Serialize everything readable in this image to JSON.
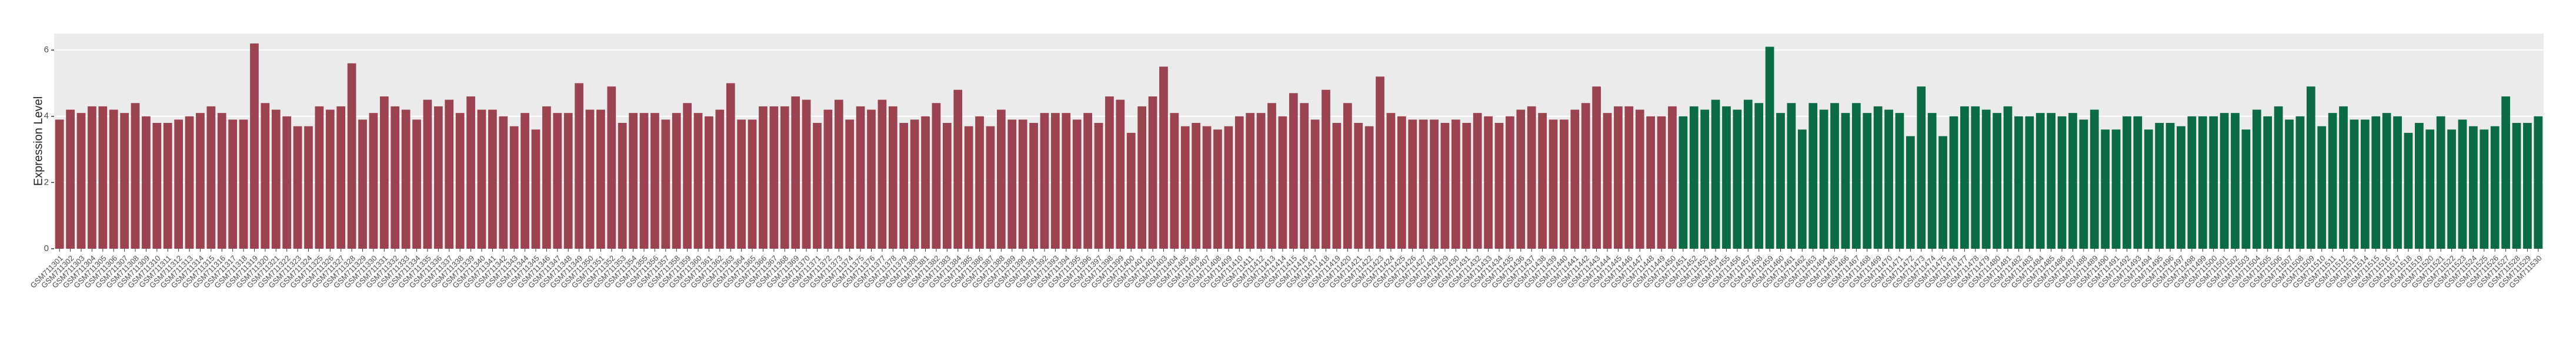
{
  "chart_data": {
    "type": "bar",
    "ylabel": "Expression Level",
    "ylim": [
      0,
      6.5
    ],
    "yticks": [
      0,
      2,
      4,
      6
    ],
    "grid": true,
    "series": [
      {
        "color": "#9b4450",
        "categories": [
          "GSM711301",
          "GSM711302",
          "GSM711303",
          "GSM711304",
          "GSM711305",
          "GSM711306",
          "GSM711307",
          "GSM711308",
          "GSM711309",
          "GSM711310",
          "GSM711311",
          "GSM711312",
          "GSM711313",
          "GSM711314",
          "GSM711315",
          "GSM711316",
          "GSM711317",
          "GSM711318",
          "GSM711319",
          "GSM711320",
          "GSM711321",
          "GSM711322",
          "GSM711323",
          "GSM711324",
          "GSM711325",
          "GSM711326",
          "GSM711327",
          "GSM711328",
          "GSM711329",
          "GSM711330",
          "GSM711331",
          "GSM711332",
          "GSM711333",
          "GSM711334",
          "GSM711335",
          "GSM711336",
          "GSM711337",
          "GSM711338",
          "GSM711339",
          "GSM711340",
          "GSM711341",
          "GSM711342",
          "GSM711343",
          "GSM711344",
          "GSM711345",
          "GSM711346",
          "GSM711347",
          "GSM711348",
          "GSM711349",
          "GSM711350",
          "GSM711351",
          "GSM711352",
          "GSM711353",
          "GSM711354",
          "GSM711355",
          "GSM711356",
          "GSM711357",
          "GSM711358",
          "GSM711359",
          "GSM711360",
          "GSM711361",
          "GSM711362",
          "GSM711363",
          "GSM711364",
          "GSM711365",
          "GSM711366",
          "GSM711367",
          "GSM711368",
          "GSM711369",
          "GSM711370",
          "GSM711371",
          "GSM711372",
          "GSM711373",
          "GSM711374",
          "GSM711375",
          "GSM711376",
          "GSM711377",
          "GSM711378",
          "GSM711379",
          "GSM711380",
          "GSM711381",
          "GSM711382",
          "GSM711383",
          "GSM711384",
          "GSM711385",
          "GSM711386",
          "GSM711387",
          "GSM711388",
          "GSM711389",
          "GSM711390",
          "GSM711391",
          "GSM711392",
          "GSM711393",
          "GSM711394",
          "GSM711395",
          "GSM711396",
          "GSM711397",
          "GSM711398",
          "GSM711399",
          "GSM711400",
          "GSM711401",
          "GSM711402",
          "GSM711403",
          "GSM711404",
          "GSM711405",
          "GSM711406",
          "GSM711407",
          "GSM711408",
          "GSM711409",
          "GSM711410",
          "GSM711411",
          "GSM711412",
          "GSM711413",
          "GSM711414",
          "GSM711415",
          "GSM711416",
          "GSM711417",
          "GSM711418",
          "GSM711419",
          "GSM711420",
          "GSM711421",
          "GSM711422",
          "GSM711423",
          "GSM711424",
          "GSM711425",
          "GSM711426",
          "GSM711427",
          "GSM711428",
          "GSM711429",
          "GSM711430",
          "GSM711431",
          "GSM711432",
          "GSM711433",
          "GSM711434",
          "GSM711435",
          "GSM711436",
          "GSM711437",
          "GSM711438",
          "GSM711439",
          "GSM711440",
          "GSM711441",
          "GSM711442",
          "GSM711443",
          "GSM711444",
          "GSM711445",
          "GSM711446",
          "GSM711447",
          "GSM711448",
          "GSM711449",
          "GSM711450"
        ],
        "values": [
          3.9,
          4.2,
          4.1,
          4.3,
          4.3,
          4.2,
          4.1,
          4.4,
          4.0,
          3.8,
          3.8,
          3.9,
          4.0,
          4.1,
          4.3,
          4.1,
          3.9,
          3.9,
          6.2,
          4.4,
          4.2,
          4.0,
          3.7,
          3.7,
          4.3,
          4.2,
          4.3,
          5.6,
          3.9,
          4.1,
          4.6,
          4.3,
          4.2,
          3.9,
          4.5,
          4.3,
          4.5,
          4.1,
          4.6,
          4.2,
          4.2,
          4.0,
          3.7,
          4.1,
          3.6,
          4.3,
          4.1,
          4.1,
          5.0,
          4.2,
          4.2,
          4.9,
          3.8,
          4.1,
          4.1,
          4.1,
          3.9,
          4.1,
          4.4,
          4.1,
          4.0,
          4.2,
          5.0,
          3.9,
          3.9,
          4.3,
          4.3,
          4.3,
          4.6,
          4.5,
          3.8,
          4.2,
          4.5,
          3.9,
          4.3,
          4.2,
          4.5,
          4.3,
          3.8,
          3.9,
          4.0,
          4.4,
          3.8,
          4.8,
          3.7,
          4.0,
          3.7,
          4.2,
          3.9,
          3.9,
          3.8,
          4.1,
          4.1,
          4.1,
          3.9,
          4.1,
          3.8,
          4.6,
          4.5,
          3.5,
          4.3,
          4.6,
          5.5,
          4.1,
          3.7,
          3.8,
          3.7,
          3.6,
          3.7,
          4.0,
          4.1,
          4.1,
          4.4,
          4.0,
          4.7,
          4.4,
          3.9,
          4.8,
          3.8,
          4.4,
          3.8,
          3.7,
          5.2,
          4.1,
          4.0,
          3.9,
          3.9,
          3.9,
          3.8,
          3.9,
          3.8,
          4.1,
          4.0,
          3.8,
          4.0,
          4.2,
          4.3,
          4.1,
          3.9,
          3.9,
          4.2,
          4.4,
          4.9,
          4.1,
          4.3,
          4.3,
          4.2,
          4.0,
          4.0,
          4.3
        ]
      },
      {
        "color": "#0b6b45",
        "categories": [
          "GSM711451",
          "GSM711452",
          "GSM711453",
          "GSM711454",
          "GSM711455",
          "GSM711456",
          "GSM711457",
          "GSM711458",
          "GSM711459",
          "GSM711460",
          "GSM711461",
          "GSM711462",
          "GSM711463",
          "GSM711464",
          "GSM711465",
          "GSM711466",
          "GSM711467",
          "GSM711468",
          "GSM711469",
          "GSM711470",
          "GSM711471",
          "GSM711472",
          "GSM711473",
          "GSM711474",
          "GSM711475",
          "GSM711476",
          "GSM711477",
          "GSM711478",
          "GSM711479",
          "GSM711480",
          "GSM711481",
          "GSM711482",
          "GSM711483",
          "GSM711484",
          "GSM711485",
          "GSM711486",
          "GSM711487",
          "GSM711488",
          "GSM711489",
          "GSM711490",
          "GSM711491",
          "GSM711492",
          "GSM711493",
          "GSM711494",
          "GSM711495",
          "GSM711496",
          "GSM711497",
          "GSM711498",
          "GSM711499",
          "GSM711500",
          "GSM711501",
          "GSM711502",
          "GSM711503",
          "GSM711504",
          "GSM711505",
          "GSM711506",
          "GSM711507",
          "GSM711508",
          "GSM711509",
          "GSM711510",
          "GSM711511",
          "GSM711512",
          "GSM711513",
          "GSM711514",
          "GSM711515",
          "GSM711516",
          "GSM711517",
          "GSM711518",
          "GSM711519",
          "GSM711520",
          "GSM711521",
          "GSM711522",
          "GSM711523",
          "GSM711524",
          "GSM711525",
          "GSM711526",
          "GSM711527",
          "GSM711528",
          "GSM711529",
          "GSM711530"
        ],
        "values": [
          4.0,
          4.3,
          4.2,
          4.5,
          4.3,
          4.2,
          4.5,
          4.4,
          6.1,
          4.1,
          4.4,
          3.6,
          4.4,
          4.2,
          4.4,
          4.1,
          4.4,
          4.1,
          4.3,
          4.2,
          4.1,
          3.4,
          4.9,
          4.1,
          3.4,
          4.0,
          4.3,
          4.3,
          4.2,
          4.1,
          4.3,
          4.0,
          4.0,
          4.1,
          4.1,
          4.0,
          4.1,
          3.9,
          4.2,
          3.6,
          3.6,
          4.0,
          4.0,
          3.6,
          3.8,
          3.8,
          3.7,
          4.0,
          4.0,
          4.0,
          4.1,
          4.1,
          3.6,
          4.2,
          4.0,
          4.3,
          3.9,
          4.0,
          4.9,
          3.7,
          4.1,
          4.3,
          3.9,
          3.9,
          4.0,
          4.1,
          4.0,
          3.5,
          3.8,
          3.6,
          4.0,
          3.6,
          3.9,
          3.7,
          3.6,
          3.7,
          4.6,
          3.8,
          3.8,
          4.0
        ]
      }
    ]
  }
}
